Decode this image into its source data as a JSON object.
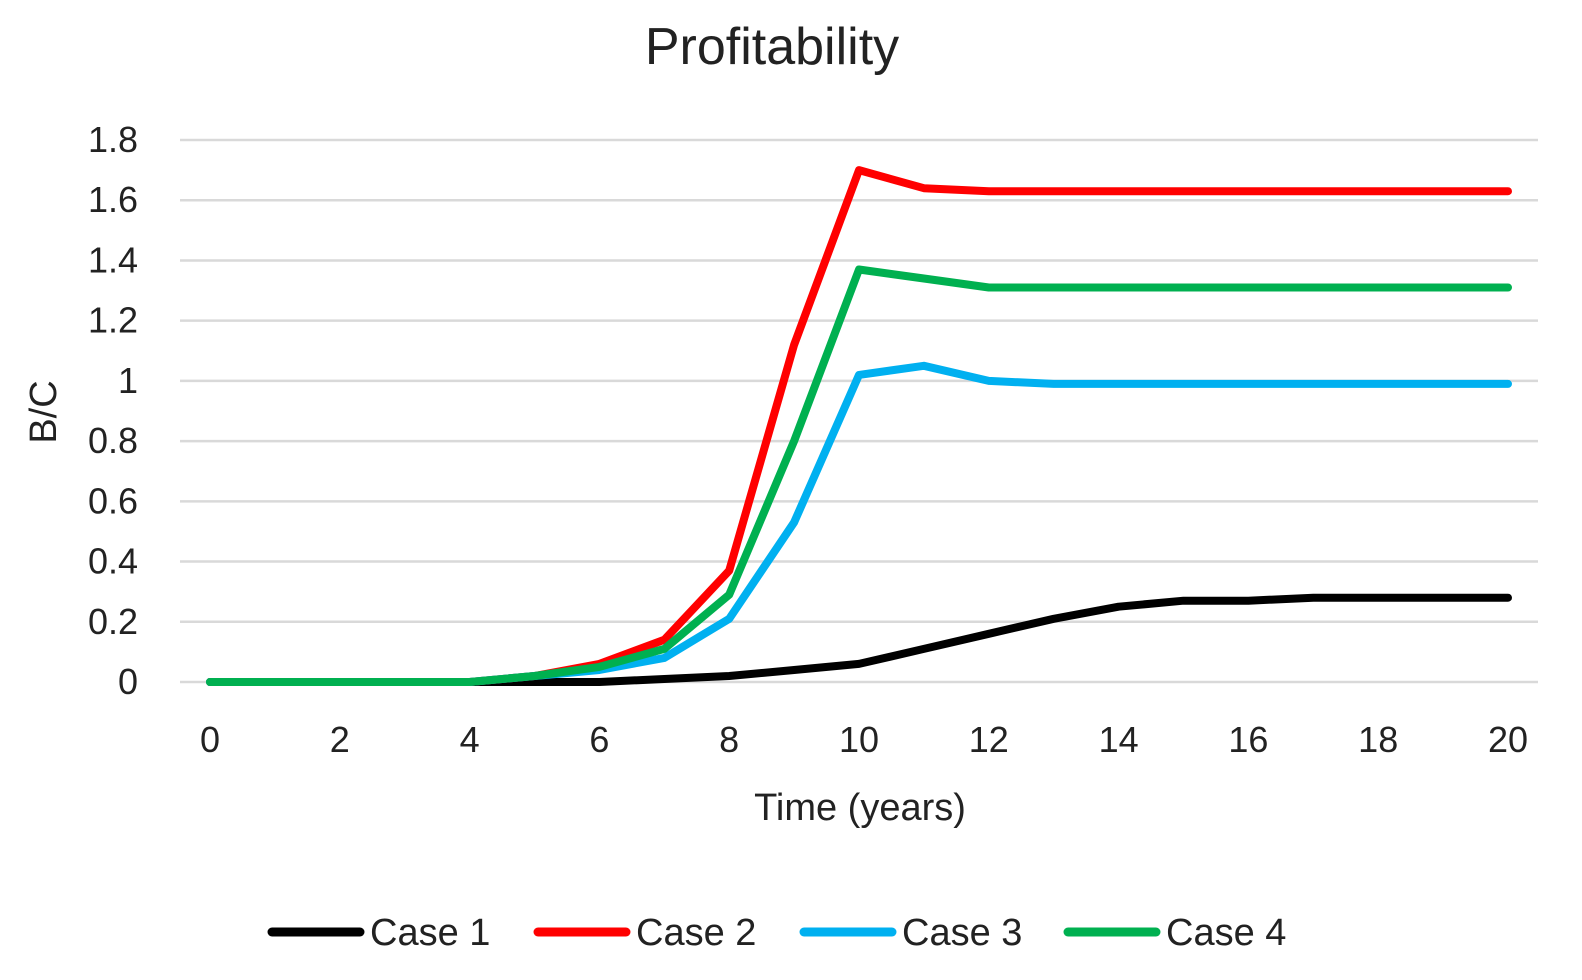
{
  "chart_data": {
    "type": "line",
    "title": "Profitability",
    "xlabel": "Time (years)",
    "ylabel": "B/C",
    "xlim": [
      0,
      20
    ],
    "ylim": [
      0,
      1.8
    ],
    "x_ticks": [
      0,
      2,
      4,
      6,
      8,
      10,
      12,
      14,
      16,
      18,
      20
    ],
    "y_ticks": [
      0,
      0.2,
      0.4,
      0.6,
      0.8,
      1,
      1.2,
      1.4,
      1.6,
      1.8
    ],
    "y_tick_labels": [
      "0",
      "0.2",
      "0.4",
      "0.6",
      "0.8",
      "1",
      "1.2",
      "1.4",
      "1.6",
      "1.8"
    ],
    "grid": true,
    "legend_position": "bottom",
    "x": [
      0,
      1,
      2,
      3,
      4,
      5,
      6,
      7,
      8,
      9,
      10,
      11,
      12,
      13,
      14,
      15,
      16,
      17,
      18,
      19,
      20
    ],
    "series": [
      {
        "name": "Case 1",
        "color": "#000000",
        "values": [
          0,
          0,
          0,
          0,
          0,
          0,
          0,
          0.01,
          0.02,
          0.04,
          0.06,
          0.11,
          0.16,
          0.21,
          0.25,
          0.27,
          0.27,
          0.28,
          0.28,
          0.28,
          0.28
        ]
      },
      {
        "name": "Case 2",
        "color": "#ff0000",
        "values": [
          0,
          0,
          0,
          0,
          0,
          0.02,
          0.06,
          0.14,
          0.37,
          1.12,
          1.7,
          1.64,
          1.63,
          1.63,
          1.63,
          1.63,
          1.63,
          1.63,
          1.63,
          1.63,
          1.63
        ]
      },
      {
        "name": "Case 3",
        "color": "#00b0f0",
        "values": [
          0,
          0,
          0,
          0,
          0,
          0.02,
          0.04,
          0.08,
          0.21,
          0.53,
          1.02,
          1.05,
          1.0,
          0.99,
          0.99,
          0.99,
          0.99,
          0.99,
          0.99,
          0.99,
          0.99
        ]
      },
      {
        "name": "Case 4",
        "color": "#00b050",
        "values": [
          0,
          0,
          0,
          0,
          0,
          0.02,
          0.05,
          0.11,
          0.29,
          0.8,
          1.37,
          1.34,
          1.31,
          1.31,
          1.31,
          1.31,
          1.31,
          1.31,
          1.31,
          1.31,
          1.31
        ]
      }
    ]
  }
}
